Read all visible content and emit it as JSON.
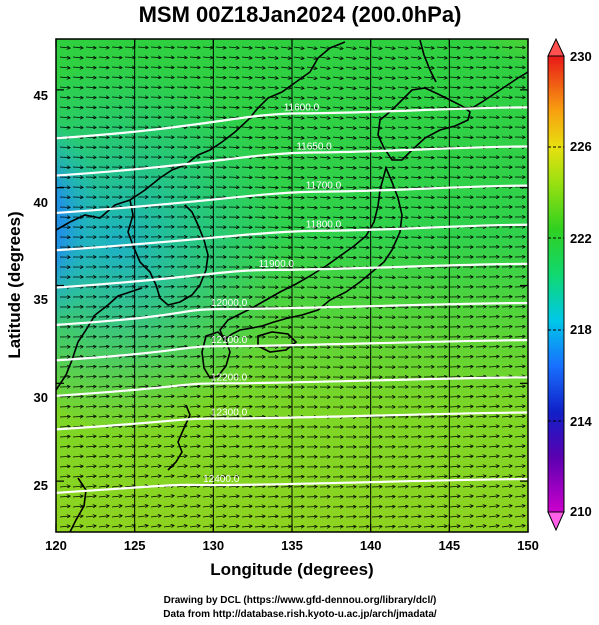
{
  "title": "MSM 00Z18Jan2024 (200.0hPa)",
  "x_axis": {
    "label": "Longitude (degrees)",
    "ticks": [
      "120",
      "125",
      "130",
      "135",
      "140",
      "145",
      "150"
    ]
  },
  "y_axis": {
    "label": "Latitude  (degrees)",
    "ticks": [
      "25",
      "30",
      "35",
      "40",
      "45"
    ]
  },
  "colorbar": {
    "ticks": [
      "210",
      "214",
      "218",
      "222",
      "226",
      "230"
    ]
  },
  "contour_labels": [
    "11600.0",
    "11650.0",
    "11700.0",
    "11800.0",
    "11900.0",
    "12000.0",
    "12100.0",
    "12200.0",
    "12300.0",
    "12400.0"
  ],
  "credits": {
    "line1": "Drawing by DCL (https://www.gfd-dennou.org/library/dcl/)",
    "line2": "Data from http://database.rish.kyoto-u.ac.jp/arch/jmadata/"
  },
  "chart_data": {
    "type": "heatmap",
    "title": "MSM 00Z18Jan2024 (200.0hPa)",
    "xlabel": "Longitude (degrees)",
    "ylabel": "Latitude  (degrees)",
    "xlim": [
      120,
      150
    ],
    "ylim": [
      22.4,
      47.6
    ],
    "xticks": [
      120,
      125,
      130,
      135,
      140,
      145,
      150
    ],
    "yticks": [
      25,
      30,
      35,
      40,
      45
    ],
    "colorbar": {
      "min": 210,
      "max": 230,
      "ticks": [
        210,
        214,
        218,
        222,
        226,
        230
      ],
      "extend": "both"
    },
    "wind_vectors": "westerly",
    "contours": [
      {
        "value": 11600,
        "label": "11600.0",
        "lon": 135.6,
        "lat": 43.8
      },
      {
        "value": 11650,
        "label": "11650.0",
        "lon": 136.4,
        "lat": 41.8
      },
      {
        "value": 11700,
        "label": "11700.0",
        "lon": 137.0,
        "lat": 39.8
      },
      {
        "value": 11800,
        "label": "11800.0",
        "lon": 137.0,
        "lat": 37.8
      },
      {
        "value": 11900,
        "label": "11900.0",
        "lon": 134.0,
        "lat": 35.8
      },
      {
        "value": 12000,
        "label": "12000.0",
        "lon": 131.0,
        "lat": 33.8
      },
      {
        "value": 12100,
        "label": "12100.0",
        "lon": 131.0,
        "lat": 31.9
      },
      {
        "value": 12200,
        "label": "12200.0",
        "lon": 131.0,
        "lat": 30.0
      },
      {
        "value": 12300,
        "label": "12300.0",
        "lon": 131.0,
        "lat": 28.2
      },
      {
        "value": 12400,
        "label": "12400.0",
        "lon": 130.5,
        "lat": 24.8
      }
    ]
  }
}
